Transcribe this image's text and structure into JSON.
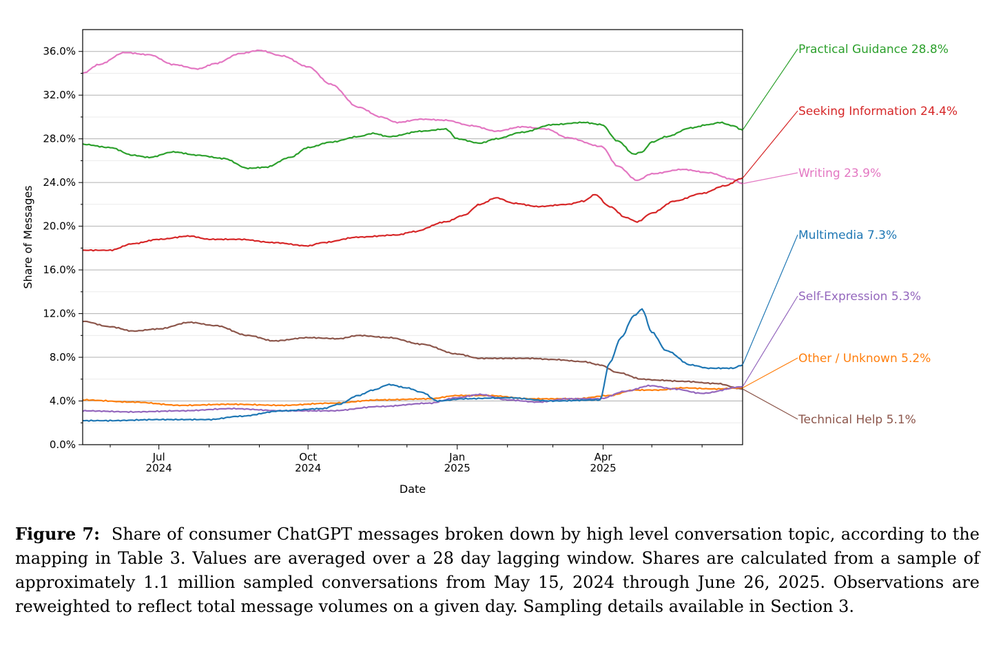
{
  "chart_data": {
    "type": "line",
    "title": "",
    "xlabel": "Date",
    "ylabel": "Share of Messages",
    "ylim": [
      0,
      38
    ],
    "y_ticks": [
      0,
      4,
      8,
      12,
      16,
      20,
      24,
      28,
      32,
      36
    ],
    "y_tick_labels": [
      "0.0%",
      "4.0%",
      "8.0%",
      "12.0%",
      "16.0%",
      "20.0%",
      "24.0%",
      "28.0%",
      "32.0%",
      "36.0%"
    ],
    "x_start": "2024-05-15",
    "x_end": "2025-06-26",
    "x_ticks": [
      {
        "date": "2024-07-01",
        "line1": "Jul",
        "line2": "2024"
      },
      {
        "date": "2024-10-01",
        "line1": "Oct",
        "line2": "2024"
      },
      {
        "date": "2025-01-01",
        "line1": "Jan",
        "line2": "2025"
      },
      {
        "date": "2025-04-01",
        "line1": "Apr",
        "line2": "2025"
      }
    ],
    "x_minor_ticks": [
      "2024-06-01",
      "2024-08-01",
      "2024-09-01",
      "2024-11-01",
      "2024-12-01",
      "2025-02-01",
      "2025-03-01",
      "2025-05-01",
      "2025-06-01"
    ],
    "grid": true,
    "series": [
      {
        "name": "Practical Guidance",
        "end_value": "28.8%",
        "color": "#2ca02c",
        "points": [
          [
            "2024-05-15",
            27.5
          ],
          [
            "2024-06-01",
            27.2
          ],
          [
            "2024-06-15",
            26.5
          ],
          [
            "2024-06-25",
            26.3
          ],
          [
            "2024-07-10",
            26.8
          ],
          [
            "2024-07-25",
            26.5
          ],
          [
            "2024-08-10",
            26.2
          ],
          [
            "2024-08-25",
            25.3
          ],
          [
            "2024-09-05",
            25.4
          ],
          [
            "2024-09-20",
            26.3
          ],
          [
            "2024-10-01",
            27.2
          ],
          [
            "2024-10-15",
            27.7
          ],
          [
            "2024-11-01",
            28.2
          ],
          [
            "2024-11-10",
            28.5
          ],
          [
            "2024-11-20",
            28.2
          ],
          [
            "2024-12-10",
            28.7
          ],
          [
            "2024-12-25",
            28.9
          ],
          [
            "2025-01-01",
            28.0
          ],
          [
            "2025-01-15",
            27.6
          ],
          [
            "2025-01-25",
            28.0
          ],
          [
            "2025-02-10",
            28.6
          ],
          [
            "2025-03-01",
            29.3
          ],
          [
            "2025-03-20",
            29.5
          ],
          [
            "2025-03-31",
            29.3
          ],
          [
            "2025-04-10",
            27.8
          ],
          [
            "2025-04-20",
            26.6
          ],
          [
            "2025-04-25",
            26.8
          ],
          [
            "2025-05-01",
            27.7
          ],
          [
            "2025-05-10",
            28.2
          ],
          [
            "2025-05-25",
            29.0
          ],
          [
            "2025-06-05",
            29.3
          ],
          [
            "2025-06-12",
            29.5
          ],
          [
            "2025-06-20",
            29.2
          ],
          [
            "2025-06-26",
            28.8
          ]
        ]
      },
      {
        "name": "Seeking Information",
        "end_value": "24.4%",
        "color": "#d62728",
        "points": [
          [
            "2024-05-15",
            17.8
          ],
          [
            "2024-06-01",
            17.8
          ],
          [
            "2024-06-15",
            18.4
          ],
          [
            "2024-07-01",
            18.8
          ],
          [
            "2024-07-20",
            19.1
          ],
          [
            "2024-08-01",
            18.8
          ],
          [
            "2024-08-20",
            18.8
          ],
          [
            "2024-09-10",
            18.5
          ],
          [
            "2024-10-01",
            18.2
          ],
          [
            "2024-10-10",
            18.5
          ],
          [
            "2024-11-01",
            19.0
          ],
          [
            "2024-11-25",
            19.2
          ],
          [
            "2024-12-05",
            19.5
          ],
          [
            "2024-12-25",
            20.4
          ],
          [
            "2025-01-05",
            21.0
          ],
          [
            "2025-01-15",
            22.0
          ],
          [
            "2025-01-25",
            22.6
          ],
          [
            "2025-02-05",
            22.1
          ],
          [
            "2025-02-20",
            21.8
          ],
          [
            "2025-03-10",
            22.0
          ],
          [
            "2025-03-20",
            22.3
          ],
          [
            "2025-03-27",
            22.9
          ],
          [
            "2025-04-05",
            21.8
          ],
          [
            "2025-04-15",
            20.8
          ],
          [
            "2025-04-22",
            20.4
          ],
          [
            "2025-05-01",
            21.2
          ],
          [
            "2025-05-15",
            22.3
          ],
          [
            "2025-06-01",
            23.0
          ],
          [
            "2025-06-15",
            23.7
          ],
          [
            "2025-06-26",
            24.4
          ]
        ]
      },
      {
        "name": "Writing",
        "end_value": "23.9%",
        "color": "#e377c2",
        "points": [
          [
            "2024-05-15",
            34.0
          ],
          [
            "2024-05-25",
            34.8
          ],
          [
            "2024-06-10",
            35.9
          ],
          [
            "2024-06-25",
            35.7
          ],
          [
            "2024-07-10",
            34.8
          ],
          [
            "2024-07-25",
            34.4
          ],
          [
            "2024-08-05",
            34.9
          ],
          [
            "2024-08-20",
            35.8
          ],
          [
            "2024-09-01",
            36.1
          ],
          [
            "2024-09-15",
            35.6
          ],
          [
            "2024-10-01",
            34.6
          ],
          [
            "2024-10-15",
            33.0
          ],
          [
            "2024-11-01",
            30.9
          ],
          [
            "2024-11-15",
            30.0
          ],
          [
            "2024-11-25",
            29.5
          ],
          [
            "2024-12-10",
            29.8
          ],
          [
            "2024-12-25",
            29.7
          ],
          [
            "2025-01-10",
            29.2
          ],
          [
            "2025-01-25",
            28.7
          ],
          [
            "2025-02-10",
            29.1
          ],
          [
            "2025-02-25",
            28.9
          ],
          [
            "2025-03-10",
            28.1
          ],
          [
            "2025-03-31",
            27.3
          ],
          [
            "2025-04-10",
            25.5
          ],
          [
            "2025-04-22",
            24.2
          ],
          [
            "2025-05-01",
            24.8
          ],
          [
            "2025-05-20",
            25.2
          ],
          [
            "2025-06-05",
            24.9
          ],
          [
            "2025-06-20",
            24.3
          ],
          [
            "2025-06-26",
            23.9
          ]
        ]
      },
      {
        "name": "Multimedia",
        "end_value": "7.3%",
        "color": "#1f77b4",
        "points": [
          [
            "2024-05-15",
            2.2
          ],
          [
            "2024-06-01",
            2.2
          ],
          [
            "2024-07-01",
            2.3
          ],
          [
            "2024-08-01",
            2.3
          ],
          [
            "2024-08-20",
            2.6
          ],
          [
            "2024-09-15",
            3.1
          ],
          [
            "2024-10-10",
            3.3
          ],
          [
            "2024-10-20",
            3.7
          ],
          [
            "2024-11-01",
            4.5
          ],
          [
            "2024-11-10",
            5.0
          ],
          [
            "2024-11-20",
            5.5
          ],
          [
            "2024-12-01",
            5.2
          ],
          [
            "2024-12-10",
            4.8
          ],
          [
            "2024-12-20",
            4.0
          ],
          [
            "2025-01-05",
            4.2
          ],
          [
            "2025-02-01",
            4.3
          ],
          [
            "2025-03-01",
            4.0
          ],
          [
            "2025-03-30",
            4.1
          ],
          [
            "2025-04-05",
            7.5
          ],
          [
            "2025-04-12",
            9.8
          ],
          [
            "2025-04-20",
            11.8
          ],
          [
            "2025-04-25",
            12.4
          ],
          [
            "2025-05-01",
            10.3
          ],
          [
            "2025-05-10",
            8.6
          ],
          [
            "2025-05-25",
            7.3
          ],
          [
            "2025-06-05",
            7.0
          ],
          [
            "2025-06-20",
            7.0
          ],
          [
            "2025-06-26",
            7.3
          ]
        ]
      },
      {
        "name": "Self-Expression",
        "end_value": "5.3%",
        "color": "#9467bd",
        "points": [
          [
            "2024-05-15",
            3.1
          ],
          [
            "2024-06-15",
            3.0
          ],
          [
            "2024-07-15",
            3.1
          ],
          [
            "2024-08-15",
            3.3
          ],
          [
            "2024-09-15",
            3.1
          ],
          [
            "2024-10-15",
            3.1
          ],
          [
            "2024-11-15",
            3.5
          ],
          [
            "2024-12-15",
            3.8
          ],
          [
            "2025-01-01",
            4.3
          ],
          [
            "2025-01-15",
            4.6
          ],
          [
            "2025-02-01",
            4.1
          ],
          [
            "2025-02-20",
            3.9
          ],
          [
            "2025-03-10",
            4.2
          ],
          [
            "2025-03-30",
            4.2
          ],
          [
            "2025-04-15",
            4.9
          ],
          [
            "2025-04-30",
            5.4
          ],
          [
            "2025-05-15",
            5.1
          ],
          [
            "2025-06-01",
            4.7
          ],
          [
            "2025-06-26",
            5.3
          ]
        ]
      },
      {
        "name": "Other / Unknown",
        "end_value": "5.2%",
        "color": "#ff7f0e",
        "points": [
          [
            "2024-05-15",
            4.1
          ],
          [
            "2024-06-15",
            3.9
          ],
          [
            "2024-07-15",
            3.6
          ],
          [
            "2024-08-15",
            3.7
          ],
          [
            "2024-09-15",
            3.6
          ],
          [
            "2024-10-15",
            3.8
          ],
          [
            "2024-11-15",
            4.1
          ],
          [
            "2024-12-15",
            4.2
          ],
          [
            "2025-01-01",
            4.5
          ],
          [
            "2025-01-20",
            4.5
          ],
          [
            "2025-02-15",
            4.2
          ],
          [
            "2025-03-15",
            4.2
          ],
          [
            "2025-04-05",
            4.5
          ],
          [
            "2025-04-20",
            5.0
          ],
          [
            "2025-05-05",
            5.0
          ],
          [
            "2025-05-20",
            5.2
          ],
          [
            "2025-06-10",
            5.1
          ],
          [
            "2025-06-26",
            5.2
          ]
        ]
      },
      {
        "name": "Technical Help",
        "end_value": "5.1%",
        "color": "#8c564b",
        "points": [
          [
            "2024-05-15",
            11.3
          ],
          [
            "2024-06-01",
            10.8
          ],
          [
            "2024-06-15",
            10.4
          ],
          [
            "2024-07-01",
            10.6
          ],
          [
            "2024-07-20",
            11.2
          ],
          [
            "2024-08-05",
            10.9
          ],
          [
            "2024-08-25",
            10.0
          ],
          [
            "2024-09-10",
            9.5
          ],
          [
            "2024-10-01",
            9.8
          ],
          [
            "2024-10-20",
            9.7
          ],
          [
            "2024-11-01",
            10.0
          ],
          [
            "2024-11-20",
            9.8
          ],
          [
            "2024-12-10",
            9.2
          ],
          [
            "2025-01-01",
            8.3
          ],
          [
            "2025-01-15",
            7.9
          ],
          [
            "2025-02-01",
            7.9
          ],
          [
            "2025-02-15",
            7.9
          ],
          [
            "2025-03-01",
            7.8
          ],
          [
            "2025-03-20",
            7.6
          ],
          [
            "2025-03-30",
            7.3
          ],
          [
            "2025-04-10",
            6.6
          ],
          [
            "2025-04-25",
            6.0
          ],
          [
            "2025-05-05",
            5.9
          ],
          [
            "2025-05-20",
            5.8
          ],
          [
            "2025-06-10",
            5.6
          ],
          [
            "2025-06-26",
            5.1
          ]
        ]
      }
    ]
  },
  "caption": {
    "label": "Figure 7:",
    "text": "Share of consumer ChatGPT messages broken down by high level conversation topic, according to the mapping in Table 3. Values are averaged over a 28 day lagging window. Shares are calculated from a sample of approximately 1.1 million sampled conversations from May 15, 2024 through June 26, 2025. Observations are reweighted to reflect total message volumes on a given day. Sampling details available in Section 3."
  }
}
